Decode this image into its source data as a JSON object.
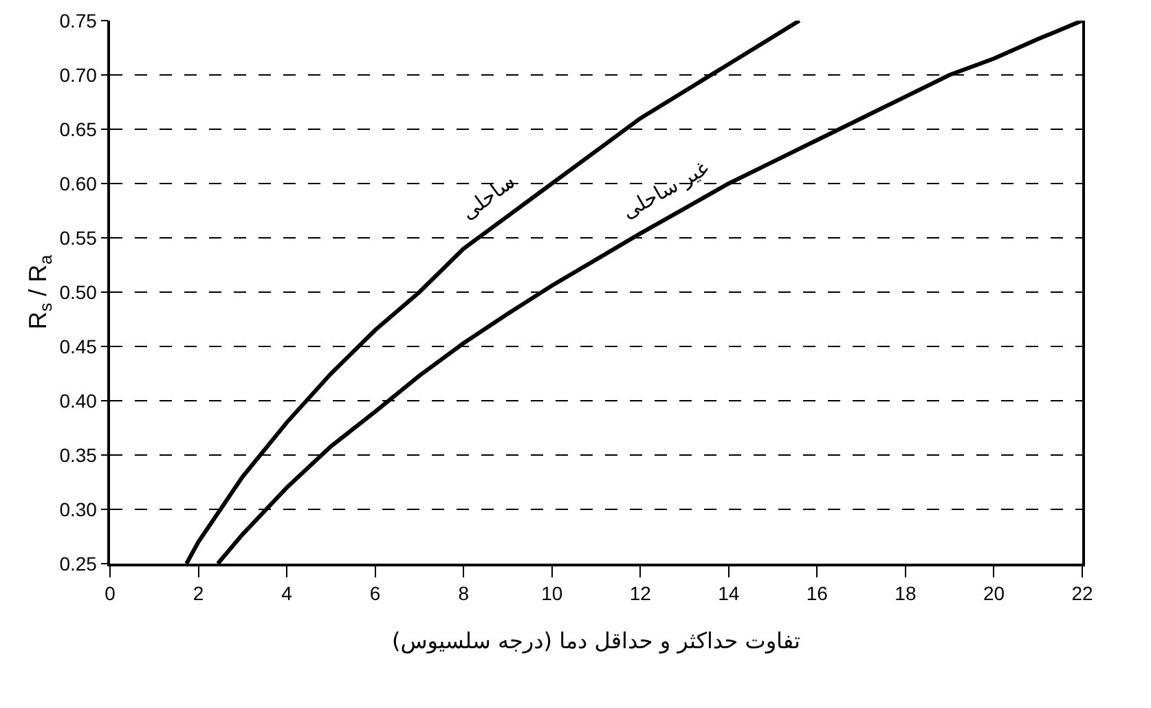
{
  "chart_data": {
    "type": "line",
    "xlabel": "تفاوت حداکثر و حداقل دما (درجه سلسیوس)",
    "ylabel": "R$_{s}$ / R$_{a}$",
    "series": [
      {
        "name": "ساحلی",
        "color": "#000000",
        "x": [
          1.73,
          2,
          3,
          4,
          5,
          6,
          7,
          8,
          9,
          10,
          11,
          12,
          13,
          14,
          15,
          15.6
        ],
        "values": [
          0.25,
          0.27,
          0.33,
          0.38,
          0.425,
          0.465,
          0.5,
          0.54,
          0.57,
          0.6,
          0.63,
          0.66,
          0.685,
          0.71,
          0.735,
          0.75
        ]
      },
      {
        "name": "غیر ساحلی",
        "color": "#000000",
        "x": [
          2.44,
          3,
          4,
          5,
          6,
          7,
          8,
          9,
          10,
          11,
          12,
          13,
          14,
          15,
          16,
          17,
          18,
          19,
          20,
          21,
          22
        ],
        "values": [
          0.25,
          0.277,
          0.32,
          0.358,
          0.39,
          0.423,
          0.453,
          0.48,
          0.506,
          0.53,
          0.554,
          0.577,
          0.6,
          0.62,
          0.64,
          0.66,
          0.68,
          0.7,
          0.715,
          0.733,
          0.75
        ]
      }
    ],
    "xlim": [
      0,
      22
    ],
    "xticks": [
      0,
      2,
      4,
      6,
      8,
      10,
      12,
      14,
      16,
      18,
      20,
      22
    ],
    "ylim": [
      0.25,
      0.75
    ],
    "yticks": [
      0.25,
      {
        "value": 0.3,
        "label": "0.30"
      },
      0.35,
      {
        "value": 0.4,
        "label": "0.40"
      },
      0.45,
      {
        "value": 0.5,
        "label": "0.50"
      },
      0.55,
      {
        "value": 0.6,
        "label": "0.60"
      },
      0.65,
      {
        "value": 0.7,
        "label": "0.70"
      },
      0.75
    ],
    "grid": "y",
    "legend": false,
    "marker": "none",
    "line_style": "solid"
  }
}
